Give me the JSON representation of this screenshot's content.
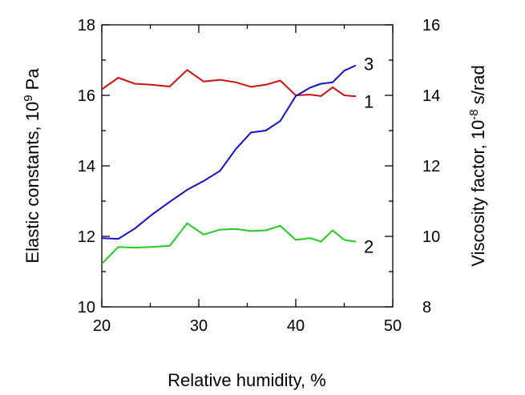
{
  "chart_data": {
    "type": "line",
    "title": "",
    "x_axis": {
      "label": "Relative humidity, %",
      "range": [
        20,
        50
      ],
      "ticks": [
        "20",
        "30",
        "40",
        "50"
      ],
      "tick_values": [
        20,
        30,
        40,
        50
      ]
    },
    "y_left_axis": {
      "label_main": "Elastic constants, 10",
      "label_sup": "9",
      "label_unit": " Pa",
      "range": [
        10,
        18
      ],
      "ticks": [
        "10",
        "12",
        "14",
        "16",
        "18"
      ],
      "tick_values": [
        10,
        12,
        14,
        16,
        18
      ]
    },
    "y_right_axis": {
      "label_main": "Viscosity factor, 10",
      "label_sup": "-8",
      "label_unit": " s/rad",
      "range": [
        8,
        16
      ],
      "ticks": [
        "8",
        "10",
        "12",
        "14",
        "16"
      ],
      "tick_values": [
        8,
        10,
        12,
        14,
        16
      ]
    },
    "grid": false,
    "series": [
      {
        "label": "1",
        "axis": "left",
        "color": "#cc1111",
        "x": [
          20,
          21.7,
          23.4,
          25.1,
          27.0,
          28.8,
          30.5,
          32.2,
          33.8,
          35.4,
          36.9,
          38.4,
          40.0,
          41.5,
          42.6,
          43.8,
          45.0,
          46.2
        ],
        "y": [
          16.17,
          16.5,
          16.33,
          16.3,
          16.25,
          16.72,
          16.39,
          16.44,
          16.37,
          16.24,
          16.3,
          16.42,
          16.0,
          16.02,
          15.98,
          16.23,
          16.0,
          15.97
        ]
      },
      {
        "label": "2",
        "axis": "left",
        "color": "#22cc22",
        "x": [
          20,
          21.7,
          23.4,
          25.1,
          27.0,
          28.8,
          30.5,
          32.2,
          33.8,
          35.4,
          36.9,
          38.4,
          40.0,
          41.5,
          42.6,
          43.8,
          45.0,
          46.2
        ],
        "y": [
          11.22,
          11.7,
          11.68,
          11.7,
          11.73,
          12.37,
          12.05,
          12.19,
          12.21,
          12.15,
          12.17,
          12.3,
          11.9,
          11.95,
          11.85,
          12.17,
          11.9,
          11.85
        ]
      },
      {
        "label": "3",
        "axis": "right",
        "color": "#1111cc",
        "x": [
          20,
          21.7,
          23.4,
          25.1,
          27.0,
          28.8,
          30.5,
          32.2,
          33.8,
          35.4,
          36.9,
          38.4,
          40.0,
          41.5,
          42.6,
          43.8,
          45.0,
          46.2
        ],
        "y": [
          9.95,
          9.93,
          10.22,
          10.6,
          10.98,
          11.32,
          11.57,
          11.86,
          12.47,
          12.95,
          13.0,
          13.27,
          13.98,
          14.22,
          14.33,
          14.37,
          14.7,
          14.85
        ]
      }
    ]
  }
}
